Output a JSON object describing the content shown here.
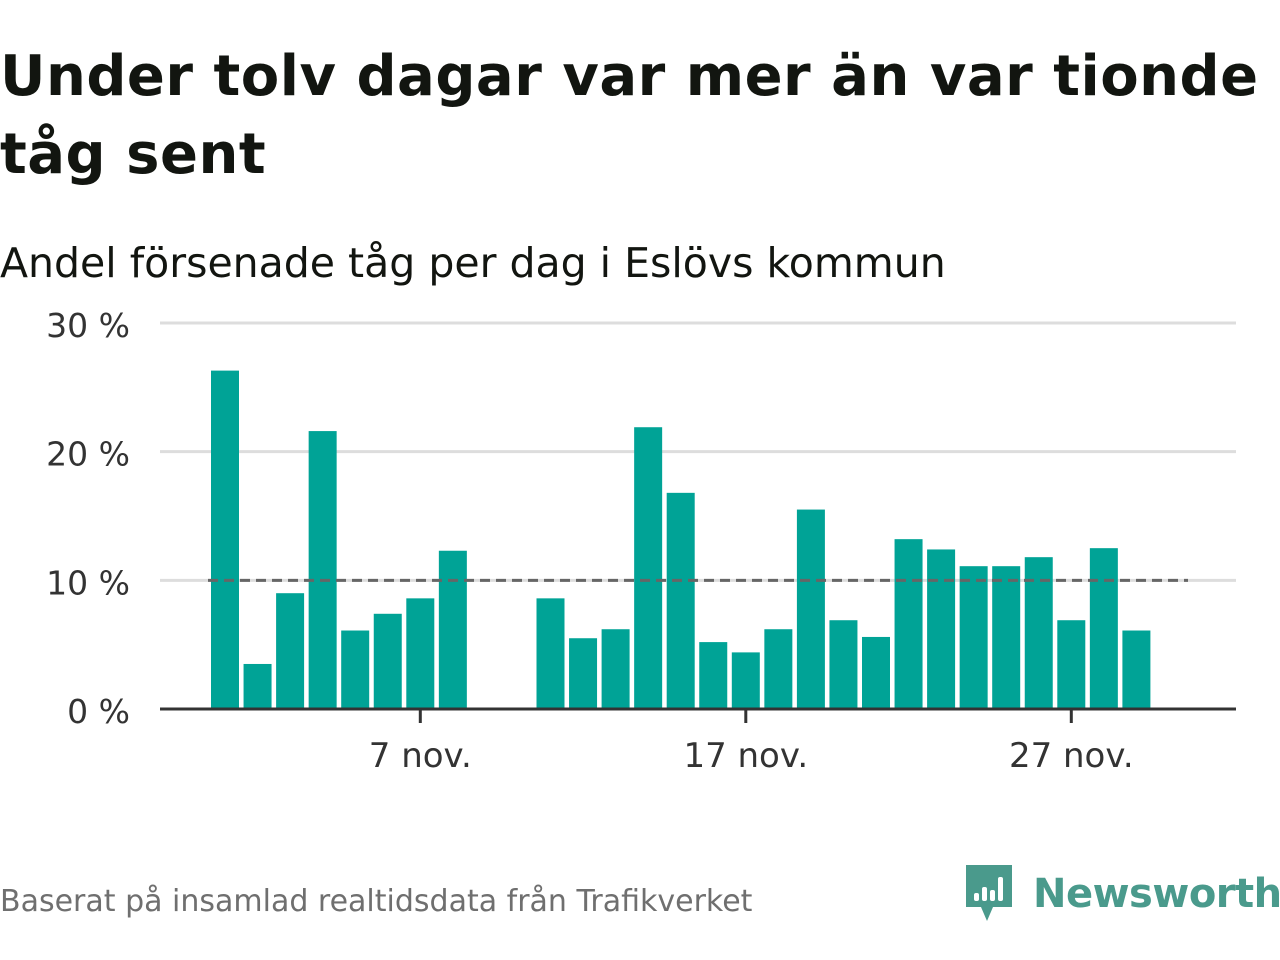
{
  "title": "Under tolv dagar var mer än var tionde tåg sent",
  "subtitle": "Andel försenade tåg per dag i Eslövs kommun",
  "footer": "Baserat på insamlad realtidsdata från Trafikverket",
  "brand": {
    "name": "Newsworthy",
    "icon": "newsworthy-logo-icon",
    "color": "#4a9a8c"
  },
  "colors": {
    "bar": "#00a396",
    "grid": "#dddddd",
    "axis": "#333333",
    "threshold": "#666666",
    "text": "#121510",
    "muted": "#6f6f6f"
  },
  "chart_data": {
    "type": "bar",
    "title": "Under tolv dagar var mer än var tionde tåg sent",
    "subtitle": "Andel försenade tåg per dag i Eslövs kommun",
    "x": [
      "2023-11-01",
      "2023-11-02",
      "2023-11-03",
      "2023-11-04",
      "2023-11-05",
      "2023-11-06",
      "2023-11-07",
      "2023-11-08",
      "2023-11-09",
      "2023-11-10",
      "2023-11-11",
      "2023-11-12",
      "2023-11-13",
      "2023-11-14",
      "2023-11-15",
      "2023-11-16",
      "2023-11-17",
      "2023-11-18",
      "2023-11-19",
      "2023-11-20",
      "2023-11-21",
      "2023-11-22",
      "2023-11-23",
      "2023-11-24",
      "2023-11-25",
      "2023-11-26",
      "2023-11-27",
      "2023-11-28",
      "2023-11-29",
      "2023-11-30"
    ],
    "values": [
      26.3,
      3.5,
      9.0,
      21.6,
      6.1,
      7.4,
      8.6,
      12.3,
      null,
      null,
      8.6,
      5.5,
      6.2,
      21.9,
      16.8,
      5.2,
      4.4,
      6.2,
      15.5,
      6.9,
      5.6,
      13.2,
      12.4,
      11.1,
      11.1,
      11.8,
      6.9,
      12.5,
      6.1,
      null
    ],
    "ylim": [
      0,
      30
    ],
    "yticks": [
      0,
      10,
      20,
      30
    ],
    "ytick_labels": [
      "0 %",
      "10 %",
      "20 %",
      "30 %"
    ],
    "xticks": [
      "2023-11-07",
      "2023-11-17",
      "2023-11-27"
    ],
    "xtick_labels": [
      "7 nov.",
      "17 nov.",
      "27 nov."
    ],
    "threshold": 10,
    "xlabel": "",
    "ylabel": "",
    "grid": true,
    "legend": "none"
  }
}
